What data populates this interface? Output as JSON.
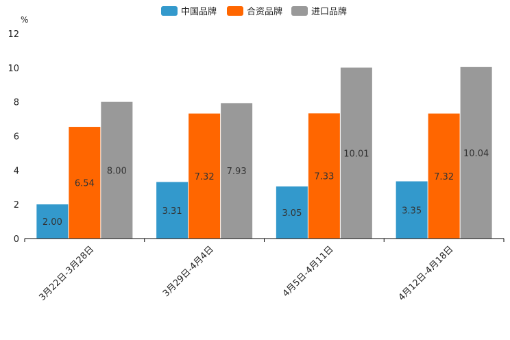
{
  "chart_data": {
    "type": "bar",
    "ylabel": "%",
    "ylim": [
      0,
      12
    ],
    "yticks": [
      0,
      2,
      4,
      6,
      8,
      10,
      12
    ],
    "grid": false,
    "legend_position": "top-center",
    "categories": [
      "3月22日-3月28日",
      "3月29日-4月4日",
      "4月5日-4月11日",
      "4月12日-4月18日"
    ],
    "series": [
      {
        "name": "中国品牌",
        "color": "#3399cc",
        "values": [
          2.0,
          3.31,
          3.05,
          3.35
        ]
      },
      {
        "name": "合资品牌",
        "color": "#ff6600",
        "values": [
          6.54,
          7.32,
          7.33,
          7.32
        ]
      },
      {
        "name": "进口品牌",
        "color": "#999999",
        "values": [
          8.0,
          7.93,
          10.01,
          10.04
        ]
      }
    ]
  }
}
